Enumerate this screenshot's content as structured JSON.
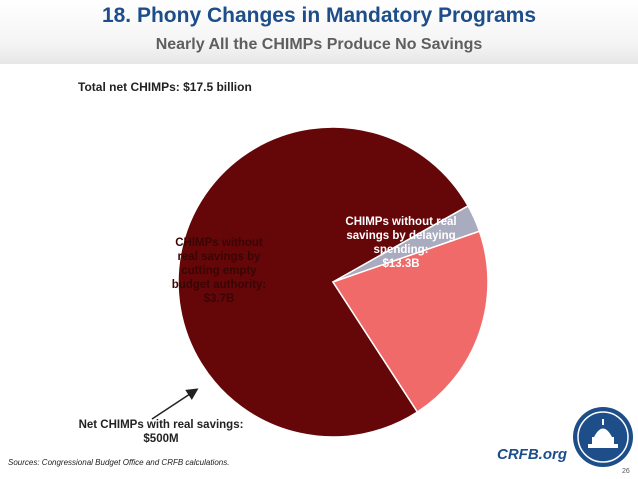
{
  "header": {
    "title": "18. Phony Changes in Mandatory Programs",
    "subtitle": "Nearly All the CHIMPs Produce No Savings"
  },
  "total_label": "Total net CHIMPs: $17.5 billion",
  "chart_data": {
    "type": "pie",
    "title": "Total net CHIMPs: $17.5 billion",
    "slices": [
      {
        "label": "CHIMPs without real savings by  delaying spending: $13.3B",
        "value": 13.3,
        "color": "#650708"
      },
      {
        "label": "Net CHIMPs with real savings: $500M",
        "value": 0.5,
        "color": "#a9abbf"
      },
      {
        "label": "CHIMPs without real savings by cutting empty budget authority: $3.7B",
        "value": 3.7,
        "color": "#f06a6a"
      }
    ],
    "unit": "billions of dollars"
  },
  "labels": {
    "delay": "CHIMPs without real\nsavings by  delaying\nspending:\n$13.3B",
    "cut": "CHIMPs without\nreal savings by\ncutting empty\nbudget authority:\n$3.7B",
    "net": "Net CHIMPs with real savings:\n$500M"
  },
  "footer": {
    "sources": "Sources: Congressional Budget Office and CRFB calculations.",
    "brand": "CRFB.org",
    "page": "26"
  }
}
